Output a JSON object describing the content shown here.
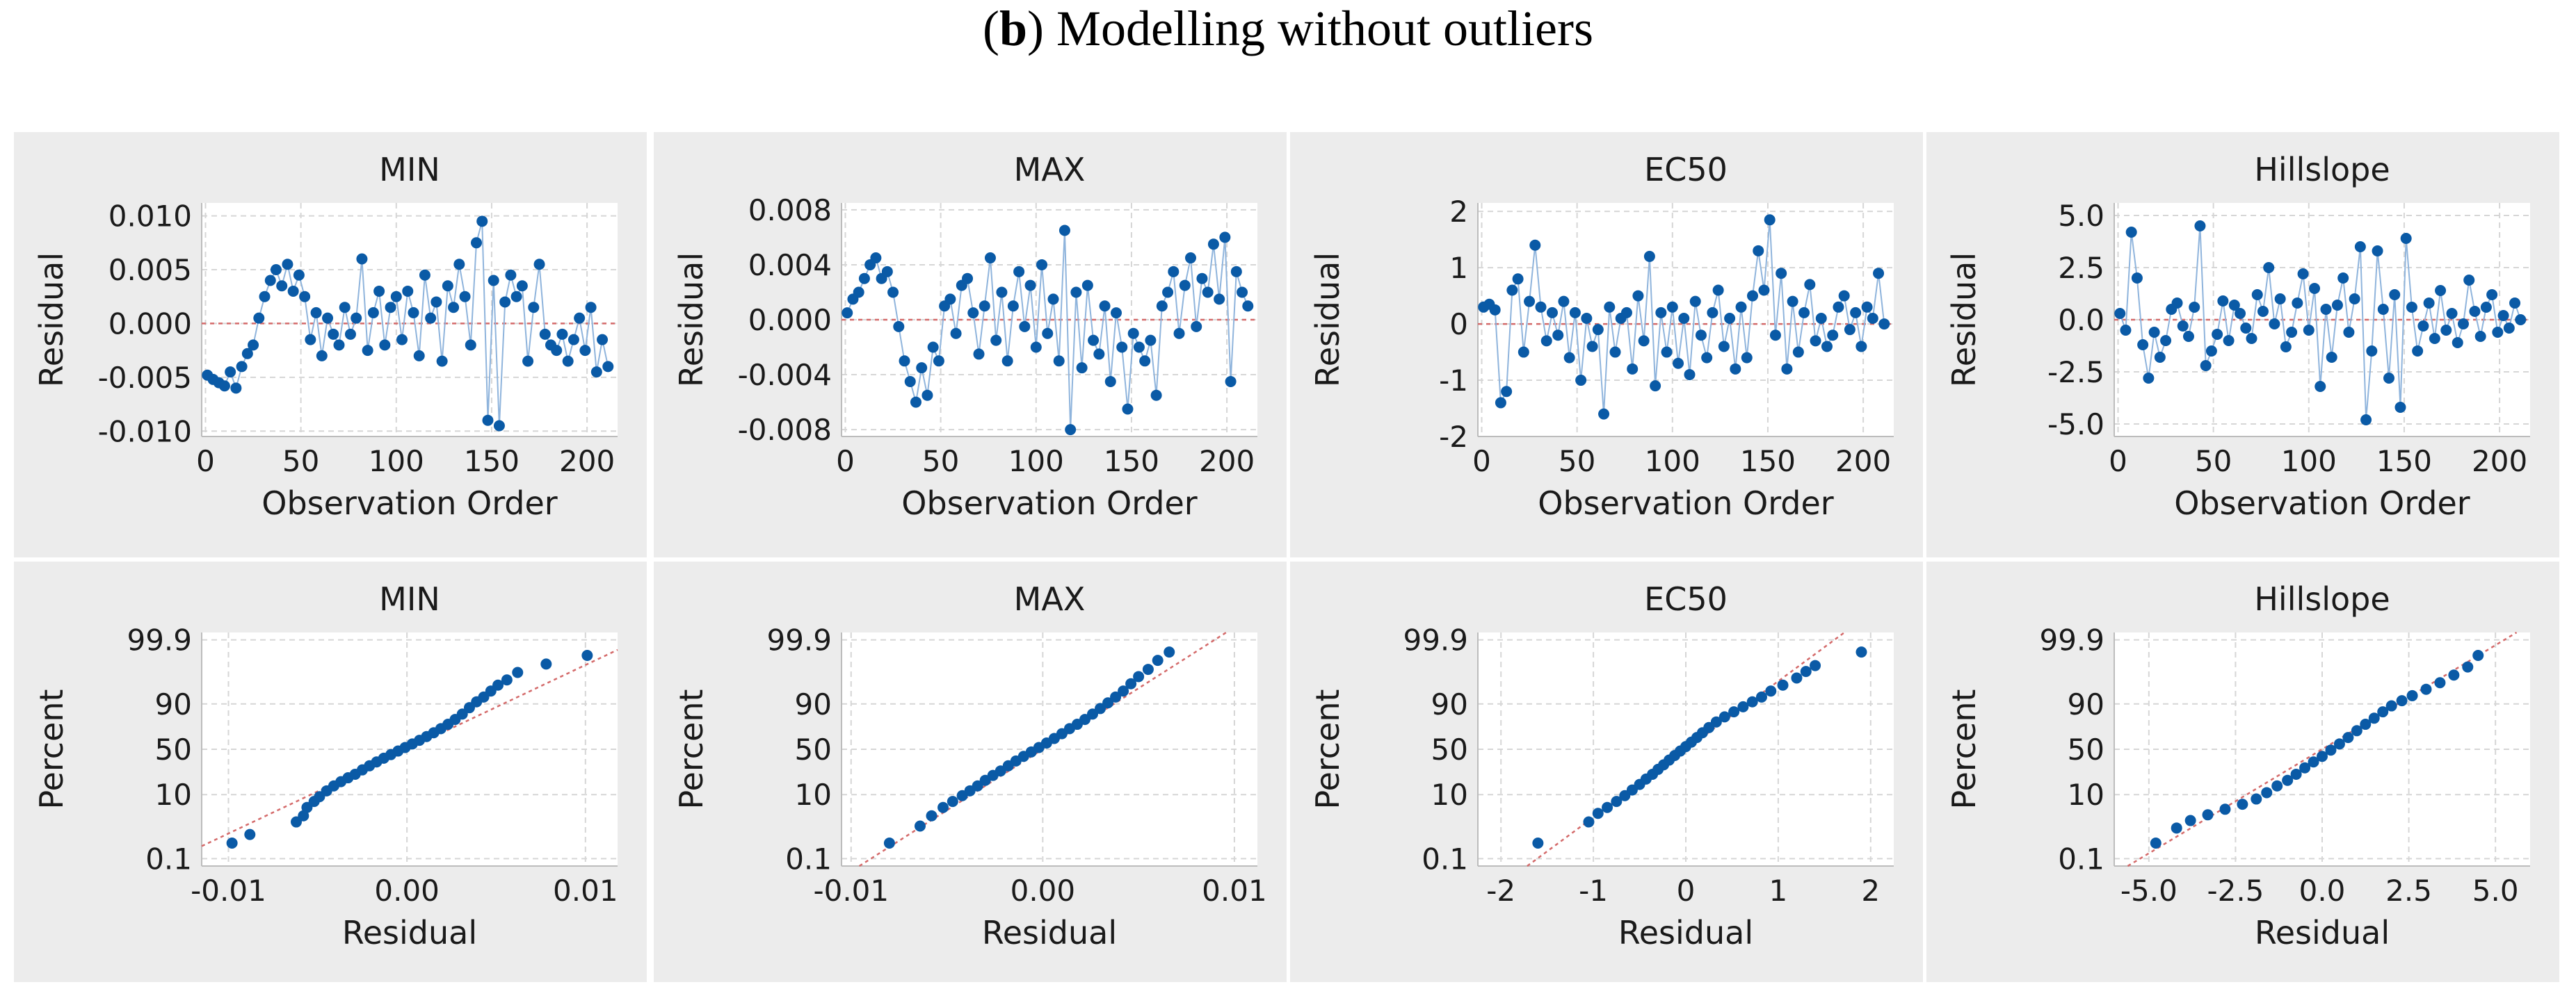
{
  "figure": {
    "label": "b",
    "title_rest": " Modelling without outliers"
  },
  "colors": {
    "point": "#0a5aa6",
    "line": "#8fb4dc",
    "reference": "#d46a6a",
    "panel": "#ececec"
  },
  "chart_data": [
    {
      "type": "line",
      "title": "MIN",
      "xlabel": "Observation Order",
      "ylabel": "Residual",
      "xlim": [
        -2,
        216
      ],
      "ylim": [
        -0.0105,
        0.0112
      ],
      "xticks": [
        0,
        50,
        100,
        150,
        200
      ],
      "xtick_labels": [
        "0",
        "50",
        "100",
        "150",
        "200"
      ],
      "yticks": [
        -0.01,
        -0.005,
        0.0,
        0.005,
        0.01
      ],
      "ytick_labels": [
        "-0.010",
        "-0.005",
        "0.000",
        "0.005",
        "0.010"
      ],
      "reference_line": 0,
      "x": [
        1,
        4,
        7,
        10,
        13,
        16,
        19,
        22,
        25,
        28,
        31,
        34,
        37,
        40,
        43,
        46,
        49,
        52,
        55,
        58,
        61,
        64,
        67,
        70,
        73,
        76,
        79,
        82,
        85,
        88,
        91,
        94,
        97,
        100,
        103,
        106,
        109,
        112,
        115,
        118,
        121,
        124,
        127,
        130,
        133,
        136,
        139,
        142,
        145,
        148,
        151,
        154,
        157,
        160,
        163,
        166,
        169,
        172,
        175,
        178,
        181,
        184,
        187,
        190,
        193,
        196,
        199,
        202,
        205,
        208,
        211
      ],
      "values": [
        -0.0048,
        -0.0052,
        -0.0055,
        -0.0058,
        -0.0045,
        -0.006,
        -0.004,
        -0.0028,
        -0.002,
        0.0005,
        0.0025,
        0.004,
        0.005,
        0.0035,
        0.0055,
        0.003,
        0.0045,
        0.0025,
        -0.0015,
        0.001,
        -0.003,
        0.0005,
        -0.001,
        -0.002,
        0.0015,
        -0.001,
        0.0005,
        0.006,
        -0.0025,
        0.001,
        0.003,
        -0.002,
        0.0015,
        0.0025,
        -0.0015,
        0.003,
        0.001,
        -0.003,
        0.0045,
        0.0005,
        0.002,
        -0.0035,
        0.0035,
        0.0015,
        0.0055,
        0.0025,
        -0.002,
        0.0075,
        0.0095,
        -0.009,
        0.004,
        -0.0095,
        0.002,
        0.0045,
        0.0025,
        0.0035,
        -0.0035,
        0.0015,
        0.0055,
        -0.001,
        -0.002,
        -0.0025,
        -0.001,
        -0.0035,
        -0.0015,
        0.0005,
        -0.0025,
        0.0015,
        -0.0045,
        -0.0015,
        -0.004
      ]
    },
    {
      "type": "line",
      "title": "MAX",
      "xlabel": "Observation Order",
      "ylabel": "Residual",
      "xlim": [
        -2,
        216
      ],
      "ylim": [
        -0.0085,
        0.0085
      ],
      "xticks": [
        0,
        50,
        100,
        150,
        200
      ],
      "xtick_labels": [
        "0",
        "50",
        "100",
        "150",
        "200"
      ],
      "yticks": [
        -0.008,
        -0.004,
        0.0,
        0.004,
        0.008
      ],
      "ytick_labels": [
        "-0.008",
        "-0.004",
        "0.000",
        "0.004",
        "0.008"
      ],
      "reference_line": 0,
      "x": [
        1,
        4,
        7,
        10,
        13,
        16,
        19,
        22,
        25,
        28,
        31,
        34,
        37,
        40,
        43,
        46,
        49,
        52,
        55,
        58,
        61,
        64,
        67,
        70,
        73,
        76,
        79,
        82,
        85,
        88,
        91,
        94,
        97,
        100,
        103,
        106,
        109,
        112,
        115,
        118,
        121,
        124,
        127,
        130,
        133,
        136,
        139,
        142,
        145,
        148,
        151,
        154,
        157,
        160,
        163,
        166,
        169,
        172,
        175,
        178,
        181,
        184,
        187,
        190,
        193,
        196,
        199,
        202,
        205,
        208,
        211
      ],
      "values": [
        0.0005,
        0.0015,
        0.002,
        0.003,
        0.004,
        0.0045,
        0.003,
        0.0035,
        0.002,
        -0.0005,
        -0.003,
        -0.0045,
        -0.006,
        -0.0035,
        -0.0055,
        -0.002,
        -0.003,
        0.001,
        0.0015,
        -0.001,
        0.0025,
        0.003,
        0.0005,
        -0.0025,
        0.001,
        0.0045,
        -0.0015,
        0.002,
        -0.003,
        0.001,
        0.0035,
        -0.0005,
        0.0025,
        -0.002,
        0.004,
        -0.001,
        0.0015,
        -0.003,
        0.0065,
        -0.008,
        0.002,
        -0.0035,
        0.0025,
        -0.0015,
        -0.0025,
        0.001,
        -0.0045,
        0.0005,
        -0.002,
        -0.0065,
        -0.001,
        -0.002,
        -0.003,
        -0.0015,
        -0.0055,
        0.001,
        0.002,
        0.0035,
        -0.001,
        0.0025,
        0.0045,
        -0.0005,
        0.003,
        0.002,
        0.0055,
        0.0015,
        0.006,
        -0.0045,
        0.0035,
        0.002,
        0.001
      ]
    },
    {
      "type": "line",
      "title": "EC50",
      "xlabel": "Observation Order",
      "ylabel": "Residual",
      "xlim": [
        -2,
        216
      ],
      "ylim": [
        -2.0,
        2.15
      ],
      "xticks": [
        0,
        50,
        100,
        150,
        200
      ],
      "xtick_labels": [
        "0",
        "50",
        "100",
        "150",
        "200"
      ],
      "yticks": [
        -2,
        -1,
        0,
        1,
        2
      ],
      "ytick_labels": [
        "-2",
        "-1",
        "0",
        "1",
        "2"
      ],
      "reference_line": 0,
      "x": [
        1,
        4,
        7,
        10,
        13,
        16,
        19,
        22,
        25,
        28,
        31,
        34,
        37,
        40,
        43,
        46,
        49,
        52,
        55,
        58,
        61,
        64,
        67,
        70,
        73,
        76,
        79,
        82,
        85,
        88,
        91,
        94,
        97,
        100,
        103,
        106,
        109,
        112,
        115,
        118,
        121,
        124,
        127,
        130,
        133,
        136,
        139,
        142,
        145,
        148,
        151,
        154,
        157,
        160,
        163,
        166,
        169,
        172,
        175,
        178,
        181,
        184,
        187,
        190,
        193,
        196,
        199,
        202,
        205,
        208,
        211
      ],
      "values": [
        0.3,
        0.35,
        0.25,
        -1.4,
        -1.2,
        0.6,
        0.8,
        -0.5,
        0.4,
        1.4,
        0.3,
        -0.3,
        0.2,
        -0.2,
        0.4,
        -0.6,
        0.2,
        -1.0,
        0.1,
        -0.4,
        -0.1,
        -1.6,
        0.3,
        -0.5,
        0.1,
        0.2,
        -0.8,
        0.5,
        -0.3,
        1.2,
        -1.1,
        0.2,
        -0.5,
        0.3,
        -0.7,
        0.1,
        -0.9,
        0.4,
        -0.2,
        -0.6,
        0.2,
        0.6,
        -0.4,
        0.1,
        -0.8,
        0.3,
        -0.6,
        0.5,
        1.3,
        0.6,
        1.85,
        -0.2,
        0.9,
        -0.8,
        0.4,
        -0.5,
        0.2,
        0.7,
        -0.3,
        0.1,
        -0.4,
        -0.2,
        0.3,
        0.5,
        -0.1,
        0.2,
        -0.4,
        0.3,
        0.1,
        0.9,
        0.0
      ]
    },
    {
      "type": "line",
      "title": "Hillslope",
      "xlabel": "Observation Order",
      "ylabel": "Residual",
      "xlim": [
        -2,
        216
      ],
      "ylim": [
        -5.6,
        5.6
      ],
      "xticks": [
        0,
        50,
        100,
        150,
        200
      ],
      "xtick_labels": [
        "0",
        "50",
        "100",
        "150",
        "200"
      ],
      "yticks": [
        -5.0,
        -2.5,
        0.0,
        2.5,
        5.0
      ],
      "ytick_labels": [
        "-5.0",
        "-2.5",
        "0.0",
        "2.5",
        "5.0"
      ],
      "reference_line": 0,
      "x": [
        1,
        4,
        7,
        10,
        13,
        16,
        19,
        22,
        25,
        28,
        31,
        34,
        37,
        40,
        43,
        46,
        49,
        52,
        55,
        58,
        61,
        64,
        67,
        70,
        73,
        76,
        79,
        82,
        85,
        88,
        91,
        94,
        97,
        100,
        103,
        106,
        109,
        112,
        115,
        118,
        121,
        124,
        127,
        130,
        133,
        136,
        139,
        142,
        145,
        148,
        151,
        154,
        157,
        160,
        163,
        166,
        169,
        172,
        175,
        178,
        181,
        184,
        187,
        190,
        193,
        196,
        199,
        202,
        205,
        208,
        211
      ],
      "values": [
        0.3,
        -0.5,
        4.2,
        2.0,
        -1.2,
        -2.8,
        -0.6,
        -1.8,
        -1.0,
        0.5,
        0.8,
        -0.3,
        -0.8,
        0.6,
        4.5,
        -2.2,
        -1.5,
        -0.7,
        0.9,
        -1.0,
        0.7,
        0.3,
        -0.4,
        -0.9,
        1.2,
        0.4,
        2.5,
        -0.2,
        1.0,
        -1.3,
        -0.6,
        0.8,
        2.2,
        -0.5,
        1.5,
        -3.2,
        0.5,
        -1.8,
        0.7,
        2.0,
        -0.6,
        1.0,
        3.5,
        -4.8,
        -1.5,
        3.3,
        0.5,
        -2.8,
        1.2,
        -4.2,
        3.9,
        0.6,
        -1.5,
        -0.3,
        0.8,
        -0.9,
        1.4,
        -0.5,
        0.3,
        -1.1,
        -0.2,
        1.9,
        0.4,
        -0.8,
        0.6,
        1.2,
        -0.6,
        0.2,
        -0.4,
        0.8,
        0.0
      ]
    },
    {
      "type": "scatter",
      "title": "MIN",
      "xlabel": "Residual",
      "ylabel": "Percent",
      "xlim": [
        -0.0115,
        0.0118
      ],
      "zlim": [
        -3.3,
        3.3
      ],
      "xticks": [
        -0.01,
        0.0,
        0.01
      ],
      "xtick_labels": [
        "-0.01",
        "0.00",
        "0.01"
      ],
      "ytick_percent": [
        0.1,
        10,
        50,
        90,
        99.9
      ],
      "ytick_labels": [
        "0.1",
        "10",
        "50",
        "90",
        "99.9"
      ],
      "fit_line": {
        "mean": 0.0,
        "sd": 0.0042
      },
      "x": [
        -0.0098,
        -0.0088,
        -0.0062,
        -0.0058,
        -0.0056,
        -0.0052,
        -0.0049,
        -0.0045,
        -0.0041,
        -0.0037,
        -0.0033,
        -0.0029,
        -0.0025,
        -0.0021,
        -0.0017,
        -0.0013,
        -0.0009,
        -0.0005,
        -0.0001,
        0.0003,
        0.0007,
        0.0011,
        0.0015,
        0.0019,
        0.0023,
        0.0027,
        0.0031,
        0.0035,
        0.0039,
        0.0043,
        0.0047,
        0.0051,
        0.0056,
        0.0062,
        0.0078,
        0.0101
      ],
      "values": [
        0.4,
        0.8,
        2,
        3,
        5,
        7,
        9,
        12,
        15,
        18,
        21,
        24,
        28,
        32,
        36,
        40,
        44,
        48,
        52,
        56,
        60,
        64,
        68,
        72,
        76,
        80,
        84,
        88,
        91,
        93,
        95,
        96.5,
        97.5,
        98.5,
        99.2,
        99.6
      ]
    },
    {
      "type": "scatter",
      "title": "MAX",
      "xlabel": "Residual",
      "ylabel": "Percent",
      "xlim": [
        -0.0105,
        0.0112
      ],
      "zlim": [
        -3.3,
        3.3
      ],
      "xticks": [
        -0.01,
        0.0,
        0.01
      ],
      "xtick_labels": [
        "-0.01",
        "0.00",
        "0.01"
      ],
      "ytick_percent": [
        0.1,
        10,
        50,
        90,
        99.9
      ],
      "ytick_labels": [
        "0.1",
        "10",
        "50",
        "90",
        "99.9"
      ],
      "fit_line": {
        "mean": 0.0,
        "sd": 0.0029
      },
      "x": [
        -0.008,
        -0.0064,
        -0.0058,
        -0.0052,
        -0.0047,
        -0.0042,
        -0.0038,
        -0.0034,
        -0.003,
        -0.0026,
        -0.0022,
        -0.0018,
        -0.0014,
        -0.001,
        -0.0006,
        -0.0002,
        0.0002,
        0.0006,
        0.001,
        0.0014,
        0.0018,
        0.0022,
        0.0026,
        0.003,
        0.0034,
        0.0038,
        0.0042,
        0.0046,
        0.005,
        0.0055,
        0.006,
        0.0066
      ],
      "values": [
        0.4,
        1.5,
        3,
        5,
        7,
        9.5,
        12,
        15,
        19,
        23,
        27,
        32,
        37,
        42,
        47,
        52,
        57,
        62,
        67,
        72,
        76,
        80,
        84,
        87.5,
        90.5,
        93,
        95,
        96.8,
        98,
        98.8,
        99.4,
        99.7
      ]
    },
    {
      "type": "scatter",
      "title": "EC50",
      "xlabel": "Residual",
      "ylabel": "Percent",
      "xlim": [
        -2.25,
        2.25
      ],
      "zlim": [
        -3.3,
        3.3
      ],
      "xticks": [
        -2,
        -1,
        0,
        1,
        2
      ],
      "xtick_labels": [
        "-2",
        "-1",
        "0",
        "1",
        "2"
      ],
      "ytick_percent": [
        0.1,
        10,
        50,
        90,
        99.9
      ],
      "ytick_labels": [
        "0.1",
        "10",
        "50",
        "90",
        "99.9"
      ],
      "fit_line": {
        "mean": 0.0,
        "sd": 0.52
      },
      "x": [
        -1.6,
        -1.05,
        -0.95,
        -0.85,
        -0.75,
        -0.66,
        -0.58,
        -0.5,
        -0.43,
        -0.36,
        -0.3,
        -0.24,
        -0.18,
        -0.12,
        -0.06,
        0.0,
        0.06,
        0.12,
        0.18,
        0.25,
        0.33,
        0.42,
        0.52,
        0.62,
        0.72,
        0.82,
        0.92,
        1.05,
        1.2,
        1.3,
        1.4,
        1.9
      ],
      "values": [
        0.4,
        2,
        3.5,
        5,
        7,
        9.5,
        12.5,
        16,
        20,
        24,
        28.5,
        33,
        38,
        43,
        48,
        53,
        58,
        63,
        68,
        73,
        78,
        82,
        85.5,
        88.5,
        91,
        93,
        95,
        96.5,
        97.8,
        98.6,
        99.1,
        99.7
      ]
    },
    {
      "type": "scatter",
      "title": "Hillslope",
      "xlabel": "Residual",
      "ylabel": "Percent",
      "xlim": [
        -6.0,
        6.0
      ],
      "zlim": [
        -3.3,
        3.3
      ],
      "xticks": [
        -5.0,
        -2.5,
        0.0,
        2.5,
        5.0
      ],
      "xtick_labels": [
        "-5.0",
        "-2.5",
        "0.0",
        "2.5",
        "5.0"
      ],
      "ytick_percent": [
        0.1,
        10,
        50,
        90,
        99.9
      ],
      "ytick_labels": [
        "0.1",
        "10",
        "50",
        "90",
        "99.9"
      ],
      "fit_line": {
        "mean": 0.0,
        "sd": 1.7
      },
      "x": [
        -4.8,
        -4.2,
        -3.8,
        -3.3,
        -2.8,
        -2.3,
        -1.9,
        -1.6,
        -1.3,
        -1.0,
        -0.75,
        -0.5,
        -0.25,
        0.0,
        0.25,
        0.5,
        0.75,
        1.0,
        1.25,
        1.5,
        1.75,
        2.0,
        2.3,
        2.6,
        3.0,
        3.4,
        3.8,
        4.2,
        4.5
      ],
      "values": [
        0.4,
        1.3,
        2.2,
        3.2,
        4.5,
        6,
        8,
        11,
        15,
        19,
        24,
        30,
        36,
        42,
        49,
        56,
        63,
        70,
        76,
        81,
        85.5,
        89,
        91.5,
        93.5,
        95.5,
        97,
        98.2,
        99,
        99.6
      ]
    }
  ]
}
